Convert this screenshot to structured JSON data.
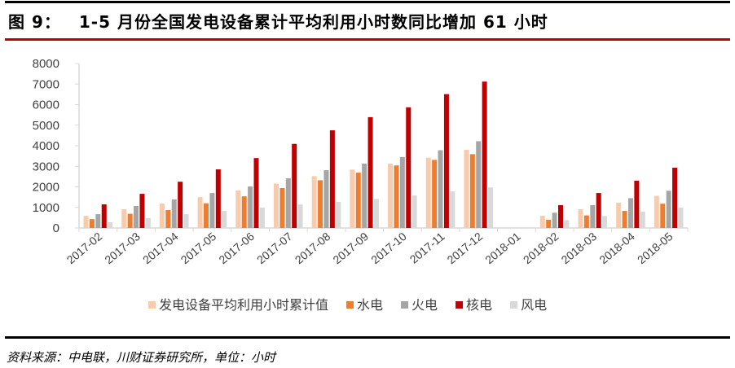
{
  "header": {
    "figure_label": "图 9：",
    "title": "1-5 月份全国发电设备累计平均利用小时数同比增加 61 小时"
  },
  "source": "资料来源：中电联，川财证券研究所，单位：小时",
  "chart_data": {
    "type": "bar",
    "title": "1-5 月份全国发电设备累计平均利用小时数同比增加 61 小时",
    "xlabel": "",
    "ylabel": "",
    "unit": "小时",
    "ylim": [
      0,
      8000
    ],
    "yticks": [
      0,
      1000,
      2000,
      3000,
      4000,
      5000,
      6000,
      7000,
      8000
    ],
    "legend_position": "bottom",
    "categories": [
      "2017-02",
      "2017-03",
      "2017-04",
      "2017-05",
      "2017-06",
      "2017-07",
      "2017-08",
      "2017-09",
      "2017-10",
      "2017-11",
      "2017-12",
      "2018-01",
      "2018-02",
      "2018-03",
      "2018-04",
      "2018-05"
    ],
    "series": [
      {
        "name": "发电设备平均利用小时累计值",
        "color": "#f8cbad",
        "values": [
          590,
          910,
          1190,
          1500,
          1820,
          2160,
          2520,
          2840,
          3130,
          3420,
          3800,
          null,
          590,
          910,
          1230,
          1560
        ]
      },
      {
        "name": "水电",
        "color": "#ed7d31",
        "values": [
          430,
          690,
          870,
          1200,
          1540,
          1940,
          2320,
          2690,
          3040,
          3310,
          3590,
          null,
          400,
          610,
          830,
          1180
        ]
      },
      {
        "name": "火电",
        "color": "#a5a5a5",
        "values": [
          670,
          1070,
          1390,
          1700,
          2020,
          2420,
          2810,
          3130,
          3450,
          3780,
          4220,
          null,
          740,
          1110,
          1450,
          1810
        ]
      },
      {
        "name": "核电",
        "color": "#c00000",
        "values": [
          1150,
          1660,
          2250,
          2850,
          3400,
          4090,
          4750,
          5390,
          5870,
          6510,
          7120,
          null,
          1110,
          1700,
          2300,
          2930
        ]
      },
      {
        "name": "风电",
        "color": "#d9d9d9",
        "values": [
          280,
          480,
          670,
          830,
          990,
          1140,
          1270,
          1410,
          1580,
          1780,
          1970,
          null,
          380,
          580,
          800,
          990
        ]
      }
    ]
  }
}
